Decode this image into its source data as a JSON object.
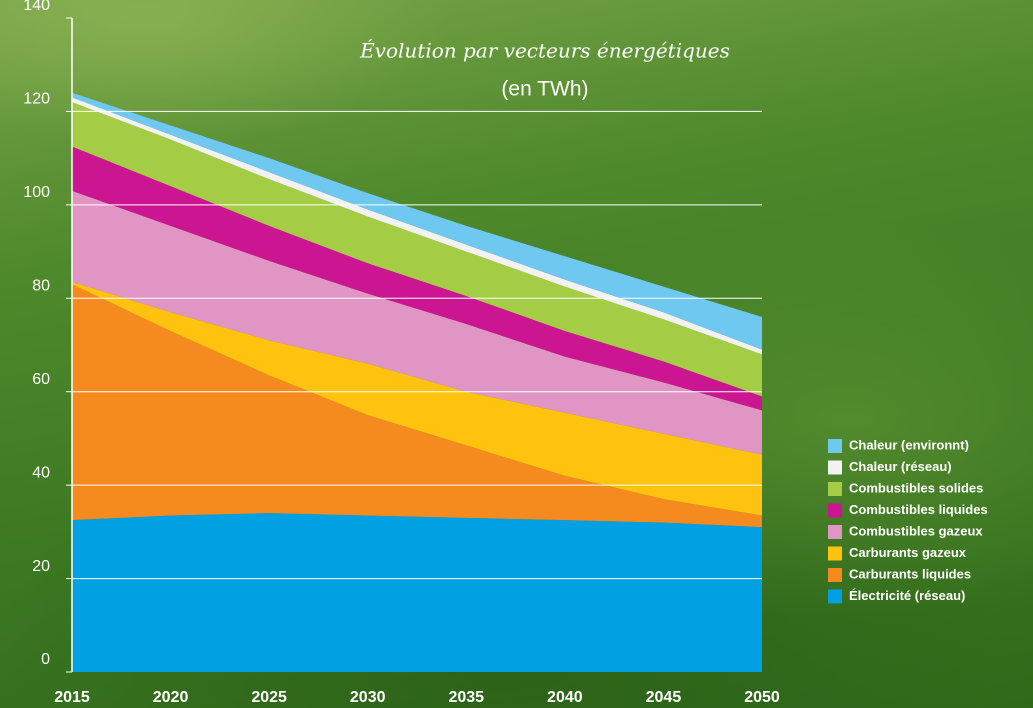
{
  "chart_data": {
    "type": "area",
    "stacked": true,
    "title": "Évolution par vecteurs énergétiques",
    "subtitle": "(en TWh)",
    "x": [
      2015,
      2020,
      2025,
      2030,
      2035,
      2040,
      2045,
      2050
    ],
    "xlim": [
      2015,
      2050
    ],
    "xticks": [
      2015,
      2020,
      2025,
      2030,
      2035,
      2040,
      2045,
      2050
    ],
    "ylim": [
      0,
      140
    ],
    "yticks": [
      0,
      20,
      40,
      60,
      80,
      100,
      120,
      140
    ],
    "grid": true,
    "series": [
      {
        "name": "Électricité (réseau)",
        "color": "#00a0e3",
        "values": [
          32.5,
          33.5,
          34,
          33.5,
          33,
          32.5,
          32,
          31
        ]
      },
      {
        "name": "Carburants liquides",
        "color": "#f58a1f",
        "values": [
          50.5,
          39.5,
          29.5,
          21.5,
          15.5,
          9.5,
          5,
          2.5
        ]
      },
      {
        "name": "Carburants gazeux",
        "color": "#ffc20e",
        "values": [
          0.5,
          4,
          7.5,
          11,
          11.5,
          13.5,
          14,
          13
        ]
      },
      {
        "name": "Combustibles gazeux",
        "color": "#e195c4",
        "values": [
          19.5,
          18.5,
          17,
          15,
          14.5,
          12,
          11,
          9.5
        ]
      },
      {
        "name": "Combustibles liquides",
        "color": "#cc1691",
        "values": [
          9.5,
          8.5,
          7.5,
          6.5,
          6,
          5.5,
          4.5,
          3
        ]
      },
      {
        "name": "Combustibles solides",
        "color": "#a4cd45",
        "values": [
          9.5,
          10,
          10,
          10,
          9.5,
          9.5,
          9,
          9
        ]
      },
      {
        "name": "Chaleur (réseau)",
        "color": "#f2f2f2",
        "values": [
          1,
          1,
          1.5,
          1.5,
          1.5,
          1.5,
          1.5,
          1
        ]
      },
      {
        "name": "Chaleur (environnt)",
        "color": "#6ec8f0",
        "values": [
          1,
          2,
          3,
          3.5,
          4,
          5,
          5.5,
          7
        ]
      }
    ]
  }
}
